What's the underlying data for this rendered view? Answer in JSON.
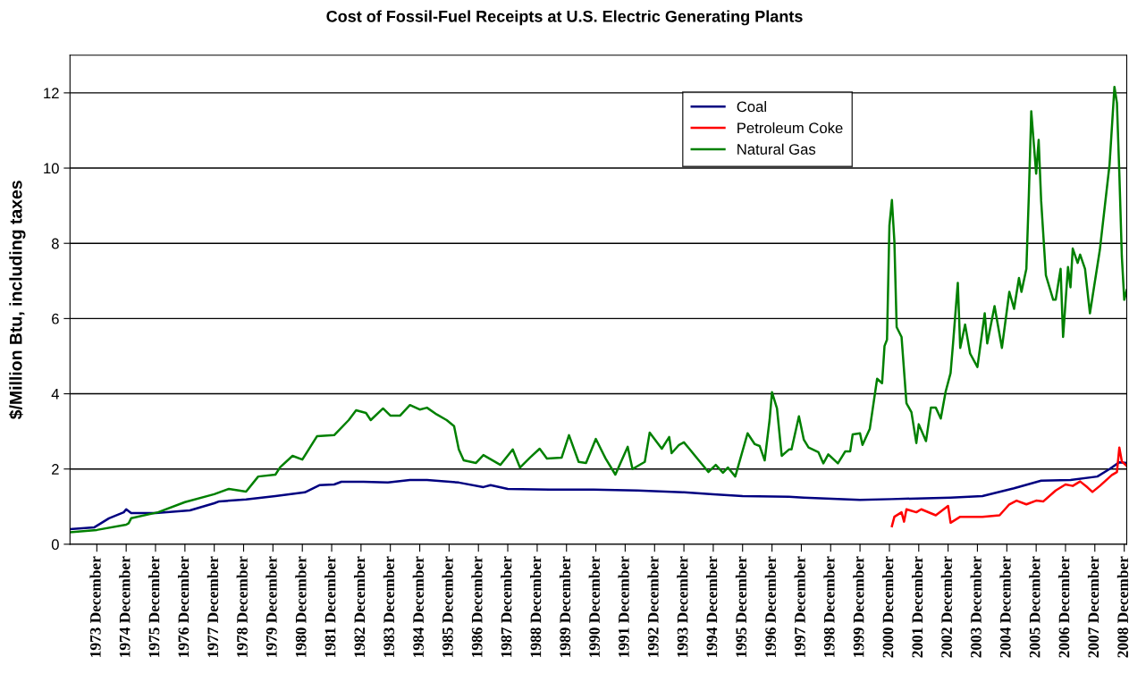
{
  "chart_data": {
    "type": "line",
    "title": "Cost of Fossil-Fuel Receipts at U.S. Electric Generating Plants",
    "ylabel": "$/Million Btu, including taxes",
    "xlim": [
      "1973-01",
      "2009-01"
    ],
    "xticks": [
      {
        "value": "1973-12",
        "label": "1973 December"
      },
      {
        "value": "1974-12",
        "label": "1974 December"
      },
      {
        "value": "1975-12",
        "label": "1975 December"
      },
      {
        "value": "1976-12",
        "label": "1976 December"
      },
      {
        "value": "1977-12",
        "label": "1977 December"
      },
      {
        "value": "1978-12",
        "label": "1978 December"
      },
      {
        "value": "1979-12",
        "label": "1979 December"
      },
      {
        "value": "1980-12",
        "label": "1980 December"
      },
      {
        "value": "1981-12",
        "label": "1981 December"
      },
      {
        "value": "1982-12",
        "label": "1982 December"
      },
      {
        "value": "1983-12",
        "label": "1983 December"
      },
      {
        "value": "1984-12",
        "label": "1984 December"
      },
      {
        "value": "1985-12",
        "label": "1985 December"
      },
      {
        "value": "1986-12",
        "label": "1986 December"
      },
      {
        "value": "1987-12",
        "label": "1987 December"
      },
      {
        "value": "1988-12",
        "label": "1988 December"
      },
      {
        "value": "1989-12",
        "label": "1989 December"
      },
      {
        "value": "1990-12",
        "label": "1990 December"
      },
      {
        "value": "1991-12",
        "label": "1991 December"
      },
      {
        "value": "1992-12",
        "label": "1992 December"
      },
      {
        "value": "1993-12",
        "label": "1993 December"
      },
      {
        "value": "1994-12",
        "label": "1994 December"
      },
      {
        "value": "1995-12",
        "label": "1995 December"
      },
      {
        "value": "1996-12",
        "label": "1996 December"
      },
      {
        "value": "1997-12",
        "label": "1997 December"
      },
      {
        "value": "1998-12",
        "label": "1998 December"
      },
      {
        "value": "1999-12",
        "label": "1999 December"
      },
      {
        "value": "2000-12",
        "label": "2000 December"
      },
      {
        "value": "2001-12",
        "label": "2001 December"
      },
      {
        "value": "2002-12",
        "label": "2002 December"
      },
      {
        "value": "2003-12",
        "label": "2003 December"
      },
      {
        "value": "2004-12",
        "label": "2004 December"
      },
      {
        "value": "2005-12",
        "label": "2005 December"
      },
      {
        "value": "2006-12",
        "label": "2006 December"
      },
      {
        "value": "2007-12",
        "label": "2007 December"
      },
      {
        "value": "2008-12",
        "label": "2008 December"
      }
    ],
    "ylim": [
      0,
      13
    ],
    "yticks": [
      0,
      2,
      4,
      6,
      8,
      10,
      12
    ],
    "grid": "y",
    "legend": "top",
    "marker": "none",
    "line_style": "solid",
    "series": [
      {
        "name": "Coal",
        "color": "#000080",
        "x": [
          "1973-01",
          "1973-11",
          "1974-05",
          "1974-11",
          "1974-12",
          "1975-02",
          "1975-12",
          "1977-02",
          "1977-12",
          "1978-02",
          "1979-01",
          "1980-01",
          "1981-01",
          "1981-07",
          "1982-01",
          "1982-04",
          "1983-01",
          "1983-11",
          "1984-08",
          "1985-03",
          "1986-04",
          "1987-02",
          "1987-05",
          "1987-12",
          "1989-05",
          "1990-11",
          "1992-05",
          "1993-12",
          "1994-12",
          "1995-12",
          "1997-07",
          "1998-01",
          "1999-12",
          "2001-01",
          "2003-01",
          "2004-02",
          "2005-03",
          "2006-02",
          "2007-02",
          "2008-01",
          "2008-06",
          "2008-10",
          "2009-01"
        ],
        "values": [
          0.4,
          0.45,
          0.69,
          0.85,
          0.93,
          0.83,
          0.83,
          0.9,
          1.09,
          1.14,
          1.19,
          1.28,
          1.38,
          1.57,
          1.59,
          1.66,
          1.66,
          1.64,
          1.71,
          1.71,
          1.64,
          1.52,
          1.57,
          1.47,
          1.45,
          1.45,
          1.43,
          1.38,
          1.33,
          1.28,
          1.26,
          1.24,
          1.18,
          1.2,
          1.24,
          1.28,
          1.49,
          1.69,
          1.71,
          1.8,
          2.0,
          2.18,
          2.16
        ]
      },
      {
        "name": "Petroleum Coke",
        "color": "#ff0000",
        "x": [
          "2001-01",
          "2001-02",
          "2001-05",
          "2001-06",
          "2001-07",
          "2001-11",
          "2002-01",
          "2002-07",
          "2002-12",
          "2003-01",
          "2003-05",
          "2004-02",
          "2004-09",
          "2005-01",
          "2005-04",
          "2005-08",
          "2005-12",
          "2006-03",
          "2006-08",
          "2006-12",
          "2007-03",
          "2007-06",
          "2007-09",
          "2007-11",
          "2008-02",
          "2008-07",
          "2008-09",
          "2008-10",
          "2008-11",
          "2009-01"
        ],
        "values": [
          0.48,
          0.73,
          0.85,
          0.6,
          0.93,
          0.85,
          0.93,
          0.77,
          1.02,
          0.57,
          0.73,
          0.73,
          0.77,
          1.06,
          1.16,
          1.06,
          1.16,
          1.14,
          1.43,
          1.59,
          1.55,
          1.67,
          1.51,
          1.39,
          1.55,
          1.84,
          1.92,
          2.57,
          2.2,
          2.08
        ]
      },
      {
        "name": "Natural Gas",
        "color": "#008000",
        "x": [
          "1973-01",
          "1973-12",
          "1974-12",
          "1975-01",
          "1975-02",
          "1976-01",
          "1976-12",
          "1977-12",
          "1978-06",
          "1979-01",
          "1979-06",
          "1980-01",
          "1980-03",
          "1980-08",
          "1980-12",
          "1981-06",
          "1982-01",
          "1982-07",
          "1982-10",
          "1983-02",
          "1983-04",
          "1983-09",
          "1983-12",
          "1984-04",
          "1984-08",
          "1984-12",
          "1985-03",
          "1985-07",
          "1985-11",
          "1986-02",
          "1986-04",
          "1986-06",
          "1986-11",
          "1987-02",
          "1987-09",
          "1988-02",
          "1988-05",
          "1988-09",
          "1989-01",
          "1989-04",
          "1989-10",
          "1990-01",
          "1990-05",
          "1990-08",
          "1990-12",
          "1991-04",
          "1991-08",
          "1992-01",
          "1992-03",
          "1992-08",
          "1992-10",
          "1993-03",
          "1993-06",
          "1993-07",
          "1993-10",
          "1993-12",
          "1994-02",
          "1994-10",
          "1995-01",
          "1995-04",
          "1995-06",
          "1995-09",
          "1996-02",
          "1996-05",
          "1996-07",
          "1996-09",
          "1996-11",
          "1996-12",
          "1997-02",
          "1997-04",
          "1997-07",
          "1997-08",
          "1997-11",
          "1998-01",
          "1998-03",
          "1998-07",
          "1998-09",
          "1998-11",
          "1999-03",
          "1999-06",
          "1999-08",
          "1999-09",
          "1999-12",
          "2000-01",
          "2000-04",
          "2000-07",
          "2000-09",
          "2000-10",
          "2000-11",
          "2000-12",
          "2001-01",
          "2001-02",
          "2001-03",
          "2001-05",
          "2001-07",
          "2001-09",
          "2001-11",
          "2001-12",
          "2002-03",
          "2002-05",
          "2002-07",
          "2002-09",
          "2002-11",
          "2003-01",
          "2003-02",
          "2003-04",
          "2003-05",
          "2003-07",
          "2003-09",
          "2003-12",
          "2004-03",
          "2004-04",
          "2004-07",
          "2004-10",
          "2005-01",
          "2005-03",
          "2005-05",
          "2005-06",
          "2005-08",
          "2005-09",
          "2005-10",
          "2005-12",
          "2006-01",
          "2006-02",
          "2006-04",
          "2006-07",
          "2006-08",
          "2006-10",
          "2006-11",
          "2007-01",
          "2007-02",
          "2007-03",
          "2007-05",
          "2007-06",
          "2007-08",
          "2007-10",
          "2008-02",
          "2008-06",
          "2008-08",
          "2008-09",
          "2008-10",
          "2008-11",
          "2008-12",
          "2009-01"
        ],
        "values": [
          0.32,
          0.38,
          0.52,
          0.56,
          0.69,
          0.85,
          1.12,
          1.33,
          1.47,
          1.4,
          1.8,
          1.85,
          2.05,
          2.35,
          2.25,
          2.87,
          2.9,
          3.3,
          3.56,
          3.49,
          3.3,
          3.61,
          3.42,
          3.42,
          3.7,
          3.58,
          3.63,
          3.45,
          3.3,
          3.14,
          2.52,
          2.23,
          2.16,
          2.37,
          2.11,
          2.52,
          2.04,
          2.3,
          2.54,
          2.28,
          2.3,
          2.9,
          2.19,
          2.16,
          2.8,
          2.28,
          1.85,
          2.59,
          2.0,
          2.19,
          2.97,
          2.54,
          2.85,
          2.42,
          2.64,
          2.71,
          2.55,
          1.92,
          2.11,
          1.9,
          2.04,
          1.8,
          2.95,
          2.66,
          2.61,
          2.23,
          3.3,
          4.04,
          3.61,
          2.35,
          2.52,
          2.52,
          3.4,
          2.78,
          2.57,
          2.45,
          2.15,
          2.39,
          2.15,
          2.47,
          2.47,
          2.92,
          2.95,
          2.64,
          3.07,
          4.4,
          4.28,
          5.27,
          5.44,
          8.47,
          9.15,
          8.04,
          5.77,
          5.51,
          3.75,
          3.51,
          2.69,
          3.19,
          2.74,
          3.63,
          3.63,
          3.34,
          4.06,
          4.55,
          5.34,
          6.95,
          5.22,
          5.84,
          5.07,
          4.71,
          6.14,
          5.34,
          6.33,
          5.22,
          6.71,
          6.26,
          7.08,
          6.71,
          7.32,
          9.29,
          11.51,
          9.85,
          10.75,
          9.13,
          7.15,
          6.5,
          6.5,
          7.32,
          5.51,
          7.37,
          6.83,
          7.86,
          7.48,
          7.7,
          7.32,
          6.14,
          7.82,
          10.09,
          12.16,
          11.73,
          9.85,
          7.65,
          6.5,
          6.76
        ]
      }
    ]
  }
}
